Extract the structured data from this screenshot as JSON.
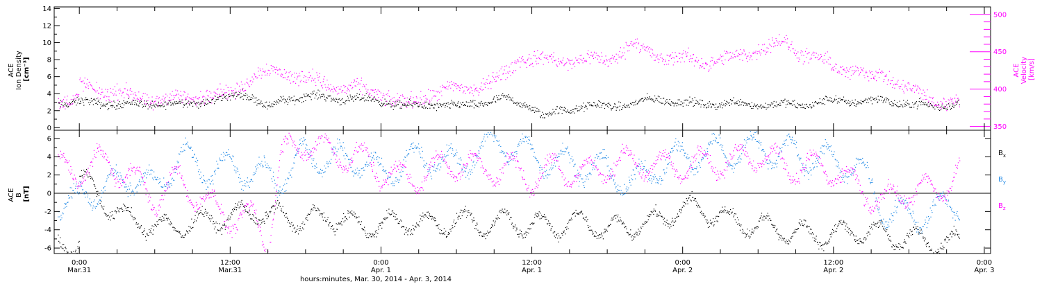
{
  "chart_data": [
    {
      "type": "scatter",
      "panel": "top",
      "ylabel_left_lines": [
        "ACE",
        "Ion Density",
        "[cm⁻³]"
      ],
      "ylabel_right_lines": [
        "ACE",
        "Velocity",
        "[km/s]"
      ],
      "yticks_left": [
        "0",
        "2",
        "4",
        "6",
        "8",
        "10",
        "12",
        "14"
      ],
      "yticks_right": [
        "350",
        "400",
        "450",
        "500"
      ],
      "ylim_left": [
        -0.3,
        14.2
      ],
      "ylim_right": [
        345,
        510
      ],
      "colors": {
        "density": "#000000",
        "velocity": "#ff00ff"
      },
      "series": [
        {
          "key": "density",
          "axis": "left",
          "anchors": [
            [
              0,
              3.0
            ],
            [
              4,
              2.8
            ],
            [
              8,
              2.8
            ],
            [
              12,
              3.5
            ],
            [
              13,
              4.2
            ],
            [
              14,
              3.5
            ],
            [
              15,
              2.3
            ],
            [
              16,
              3.2
            ],
            [
              18,
              3.8
            ],
            [
              20,
              3.5
            ],
            [
              22,
              3.4
            ],
            [
              24,
              3.2
            ],
            [
              26,
              2.5
            ],
            [
              28,
              2.8
            ],
            [
              30,
              2.5
            ],
            [
              32,
              3.0
            ],
            [
              34,
              3.4
            ],
            [
              36,
              2.5
            ],
            [
              37,
              1.2
            ],
            [
              38,
              2.0
            ],
            [
              40,
              2.5
            ],
            [
              42,
              2.6
            ],
            [
              44,
              2.8
            ],
            [
              46,
              3.5
            ],
            [
              48,
              2.9
            ],
            [
              50,
              2.8
            ],
            [
              52,
              2.9
            ],
            [
              54,
              2.8
            ],
            [
              56,
              2.7
            ],
            [
              58,
              2.8
            ],
            [
              60,
              3.2
            ],
            [
              62,
              3.2
            ],
            [
              64,
              3.2
            ],
            [
              66,
              2.8
            ],
            [
              68,
              2.5
            ],
            [
              70,
              3.0
            ]
          ],
          "noise": 0.7
        },
        {
          "key": "velocity",
          "axis": "right",
          "anchors": [
            [
              0,
              405
            ],
            [
              3,
              395
            ],
            [
              6,
              385
            ],
            [
              9,
              390
            ],
            [
              12,
              395
            ],
            [
              14,
              420
            ],
            [
              16,
              425
            ],
            [
              18,
              415
            ],
            [
              20,
              405
            ],
            [
              22,
              400
            ],
            [
              24,
              395
            ],
            [
              25,
              385
            ],
            [
              26,
              380
            ],
            [
              28,
              395
            ],
            [
              30,
              400
            ],
            [
              32,
              405
            ],
            [
              34,
              420
            ],
            [
              35,
              445
            ],
            [
              36,
              440
            ],
            [
              38,
              438
            ],
            [
              40,
              440
            ],
            [
              42,
              440
            ],
            [
              44,
              460
            ],
            [
              46,
              445
            ],
            [
              48,
              440
            ],
            [
              50,
              438
            ],
            [
              52,
              440
            ],
            [
              54,
              455
            ],
            [
              56,
              462
            ],
            [
              58,
              445
            ],
            [
              60,
              430
            ],
            [
              62,
              425
            ],
            [
              63,
              415
            ],
            [
              64,
              420
            ],
            [
              65,
              410
            ],
            [
              66,
              400
            ],
            [
              67,
              390
            ],
            [
              68,
              385
            ],
            [
              70,
              385
            ]
          ],
          "noise": 14
        }
      ]
    },
    {
      "type": "scatter",
      "panel": "bottom",
      "ylabel_lines": [
        "ACE",
        "B",
        "[nT]"
      ],
      "yticks": [
        "-6",
        "-4",
        "-2",
        "0",
        "2",
        "4",
        "6"
      ],
      "ylim": [
        -6.6,
        6.9
      ],
      "legend": [
        {
          "base": "B",
          "sub": "x",
          "color": "#000000"
        },
        {
          "base": "B",
          "sub": "y",
          "color": "#1e88e5"
        },
        {
          "base": "B",
          "sub": "z",
          "color": "#ff00ff"
        }
      ],
      "series": [
        {
          "key": "Bx",
          "color": "#000000",
          "anchors": [
            [
              0,
              2.0
            ],
            [
              2,
              -1.0
            ],
            [
              4,
              -3.0
            ],
            [
              6,
              -3.5
            ],
            [
              7,
              -3.8
            ],
            [
              8,
              -3.5
            ],
            [
              10,
              -3.0
            ],
            [
              12,
              -2.5
            ],
            [
              14,
              -2.0
            ],
            [
              16,
              -2.5
            ],
            [
              18,
              -3.0
            ],
            [
              20,
              -2.5
            ],
            [
              22,
              -3.5
            ],
            [
              24,
              -3.5
            ],
            [
              26,
              -3.0
            ],
            [
              28,
              -3.5
            ],
            [
              30,
              -3.0
            ],
            [
              32,
              -3.5
            ],
            [
              34,
              -3.0
            ],
            [
              36,
              -3.5
            ],
            [
              38,
              -3.5
            ],
            [
              40,
              -3.0
            ],
            [
              42,
              -4.0
            ],
            [
              44,
              -3.5
            ],
            [
              46,
              -3.0
            ],
            [
              48,
              -1.5
            ],
            [
              50,
              -2.0
            ],
            [
              52,
              -3.0
            ],
            [
              54,
              -3.5
            ],
            [
              56,
              -4.0
            ],
            [
              58,
              -4.5
            ],
            [
              60,
              -4.5
            ],
            [
              62,
              -4.0
            ],
            [
              64,
              -4.5
            ],
            [
              66,
              -5.0
            ],
            [
              68,
              -5.2
            ],
            [
              70,
              -5.5
            ]
          ],
          "noise": 1.3
        },
        {
          "key": "By",
          "color": "#1e88e5",
          "anchors": [
            [
              0,
              0.0
            ],
            [
              2,
              0.5
            ],
            [
              4,
              2.0
            ],
            [
              6,
              0.5
            ],
            [
              8,
              4.0
            ],
            [
              10,
              2.5
            ],
            [
              12,
              3.0
            ],
            [
              14,
              2.0
            ],
            [
              16,
              1.5
            ],
            [
              18,
              4.5
            ],
            [
              20,
              3.5
            ],
            [
              22,
              4.0
            ],
            [
              24,
              2.0
            ],
            [
              26,
              3.5
            ],
            [
              28,
              4.0
            ],
            [
              30,
              3.0
            ],
            [
              32,
              5.0
            ],
            [
              34,
              5.5
            ],
            [
              36,
              4.0
            ],
            [
              38,
              3.5
            ],
            [
              40,
              3.0
            ],
            [
              42,
              2.5
            ],
            [
              44,
              1.0
            ],
            [
              46,
              3.0
            ],
            [
              48,
              4.0
            ],
            [
              50,
              4.5
            ],
            [
              52,
              4.5
            ],
            [
              54,
              5.0
            ],
            [
              56,
              4.5
            ],
            [
              58,
              4.0
            ],
            [
              60,
              3.5
            ],
            [
              62,
              3.0
            ],
            [
              64,
              -2.0
            ],
            [
              66,
              -2.5
            ],
            [
              68,
              -2.0
            ],
            [
              70,
              -1.0
            ]
          ],
          "noise": 1.8
        },
        {
          "key": "Bz",
          "color": "#ff00ff",
          "anchors": [
            [
              0,
              2.5
            ],
            [
              2,
              3.5
            ],
            [
              4,
              2.0
            ],
            [
              6,
              -0.5
            ],
            [
              8,
              1.5
            ],
            [
              10,
              -1.0
            ],
            [
              12,
              -2.5
            ],
            [
              14,
              -3.0
            ],
            [
              15,
              -5.5
            ],
            [
              16,
              4.0
            ],
            [
              17,
              5.0
            ],
            [
              18,
              5.5
            ],
            [
              20,
              4.5
            ],
            [
              22,
              4.0
            ],
            [
              24,
              2.5
            ],
            [
              26,
              1.5
            ],
            [
              28,
              2.5
            ],
            [
              30,
              3.5
            ],
            [
              32,
              2.5
            ],
            [
              34,
              3.0
            ],
            [
              36,
              1.5
            ],
            [
              38,
              3.0
            ],
            [
              40,
              2.0
            ],
            [
              42,
              3.0
            ],
            [
              44,
              3.5
            ],
            [
              46,
              3.0
            ],
            [
              48,
              3.0
            ],
            [
              50,
              3.5
            ],
            [
              52,
              3.5
            ],
            [
              54,
              4.5
            ],
            [
              56,
              3.0
            ],
            [
              58,
              3.0
            ],
            [
              60,
              2.5
            ],
            [
              62,
              0.5
            ],
            [
              64,
              -1.0
            ],
            [
              66,
              0.5
            ],
            [
              68,
              0.0
            ],
            [
              70,
              2.5
            ]
          ],
          "noise": 1.7
        }
      ]
    }
  ],
  "xaxis": {
    "title": "hours:minutes, Mar. 30, 2014 - Apr.  3, 2014",
    "range_hours": [
      -2,
      72.5
    ],
    "data_end_hour": 70,
    "ticks": [
      {
        "hour": 0,
        "time": "0:00",
        "date": "Mar.31"
      },
      {
        "hour": 12,
        "time": "12:00",
        "date": "Mar.31"
      },
      {
        "hour": 24,
        "time": "0:00",
        "date": "Apr.  1"
      },
      {
        "hour": 36,
        "time": "12:00",
        "date": "Apr.  1"
      },
      {
        "hour": 48,
        "time": "0:00",
        "date": "Apr.  2"
      },
      {
        "hour": 60,
        "time": "12:00",
        "date": "Apr.  2"
      },
      {
        "hour": 72,
        "time": "0:00",
        "date": "Apr.  3"
      }
    ]
  }
}
